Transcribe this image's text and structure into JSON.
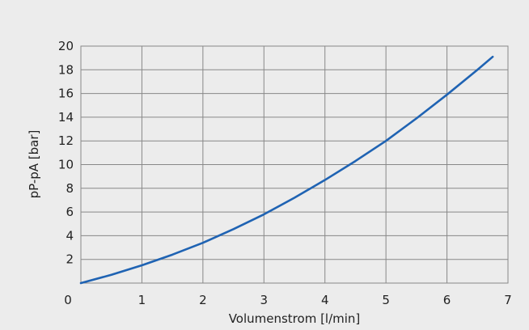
{
  "chart_data": {
    "type": "line",
    "title": "",
    "xlabel": "Volumenstrom [l/min]",
    "ylabel": "pP-pA [bar]",
    "xlim": [
      0,
      7
    ],
    "ylim": [
      0,
      20
    ],
    "x_ticks": [
      0,
      1,
      2,
      3,
      4,
      5,
      6,
      7
    ],
    "y_ticks": [
      2,
      4,
      6,
      8,
      10,
      12,
      14,
      16,
      18,
      20
    ],
    "x_tick_labels": [
      "0",
      "1",
      "2",
      "3",
      "4",
      "5",
      "6",
      "7"
    ],
    "y_tick_labels": [
      "2",
      "4",
      "6",
      "8",
      "10",
      "12",
      "14",
      "16",
      "18",
      "20"
    ],
    "grid": true,
    "legend": false,
    "series": [
      {
        "x": [
          0,
          0.5,
          1,
          1.5,
          2,
          2.5,
          3,
          3.5,
          4,
          4.5,
          5,
          5.5,
          6,
          6.5,
          6.75
        ],
        "values": [
          0.0,
          0.7,
          1.5,
          2.4,
          3.4,
          4.55,
          5.8,
          7.2,
          8.7,
          10.3,
          12.0,
          13.9,
          15.9,
          18.0,
          19.1
        ]
      }
    ],
    "colors": {
      "line": "#1f63b3",
      "grid": "#888888",
      "background": "#ececec",
      "plot_background": "#ececec",
      "text": "#222222"
    }
  }
}
